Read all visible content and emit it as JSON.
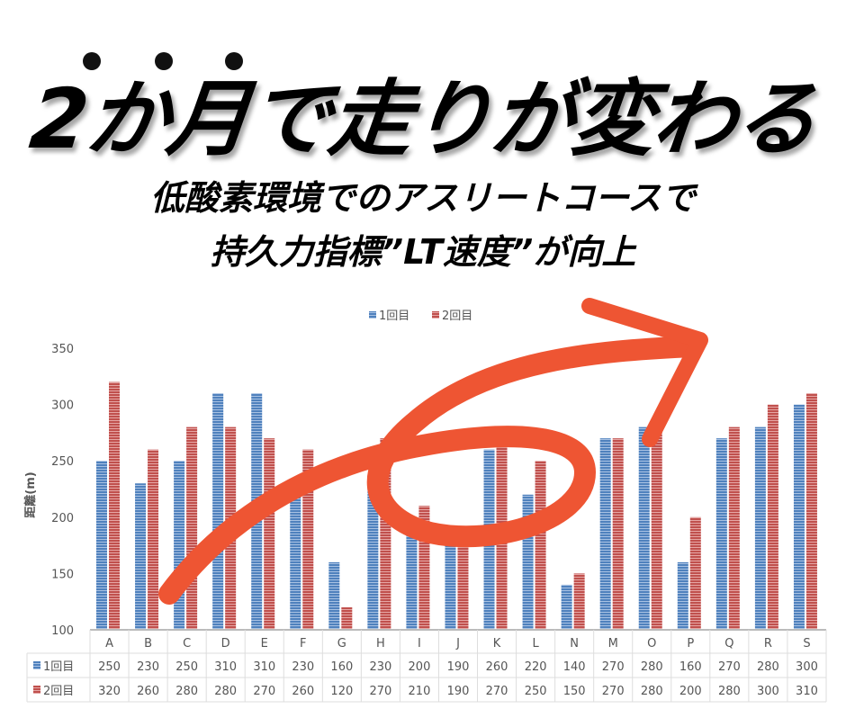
{
  "header": {
    "title": "2か月で走りが変わる",
    "subtitle_line1": "低酸素環境でのアスリートコースで",
    "subtitle_line2": "持久力指標”LT速度”が向上"
  },
  "chart_data": {
    "type": "bar",
    "title": "",
    "xlabel": "",
    "ylabel": "距離(m)",
    "ylim": [
      100,
      350
    ],
    "yticks": [
      100,
      150,
      200,
      250,
      300,
      350
    ],
    "grid": false,
    "legend_position": "top",
    "categories": [
      "A",
      "B",
      "C",
      "D",
      "E",
      "F",
      "G",
      "H",
      "I",
      "J",
      "K",
      "L",
      "N",
      "M",
      "O",
      "P",
      "Q",
      "R",
      "S"
    ],
    "series": [
      {
        "name": "1回目",
        "color": "#4f81bd",
        "values": [
          250,
          230,
          250,
          310,
          310,
          230,
          160,
          230,
          200,
          190,
          260,
          220,
          140,
          270,
          280,
          160,
          270,
          280,
          300
        ]
      },
      {
        "name": "2回目",
        "color": "#c0504d",
        "values": [
          320,
          260,
          280,
          280,
          270,
          260,
          120,
          270,
          210,
          190,
          270,
          250,
          150,
          270,
          280,
          200,
          280,
          300,
          310
        ]
      }
    ],
    "data_table": true,
    "annotation": {
      "type": "hand-drawn arrow",
      "color": "#ee5533"
    }
  }
}
